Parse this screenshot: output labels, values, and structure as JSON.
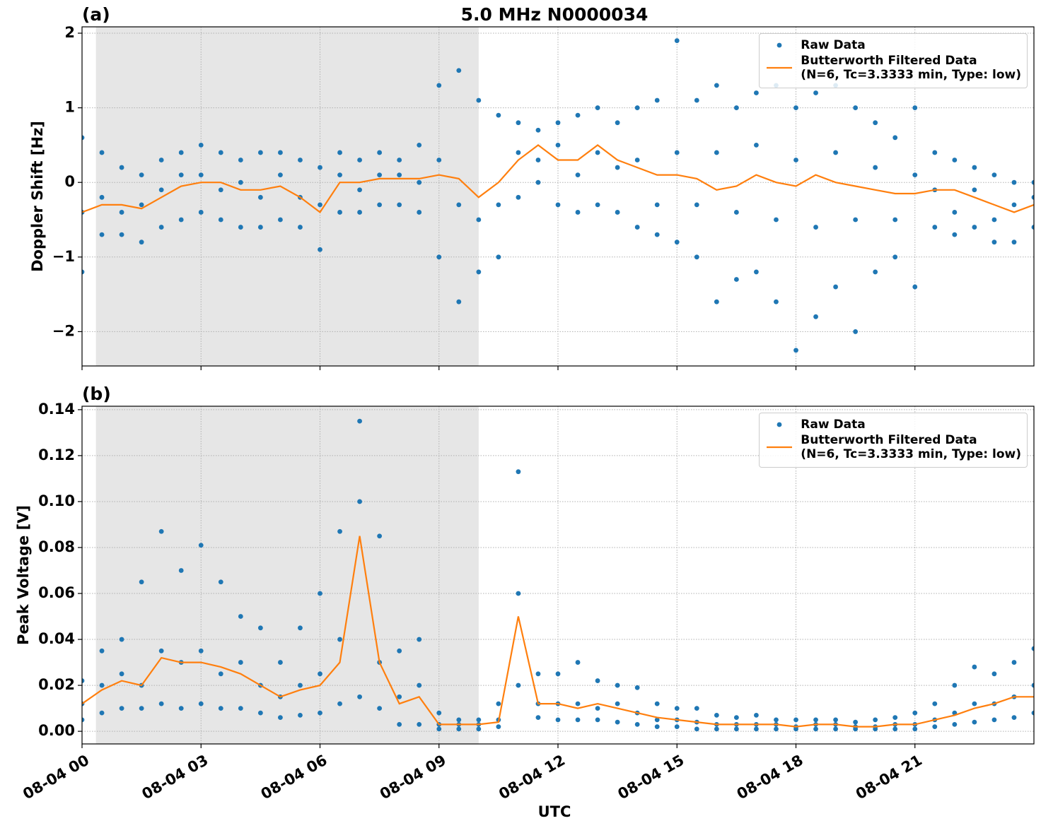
{
  "chart_data": [
    {
      "type": "scatter-line",
      "panel_label": "(a)",
      "title": "5.0 MHz N0000034",
      "ylabel": "Doppler Shift [Hz]",
      "xlim": [
        0,
        24
      ],
      "xticks": [
        0,
        3,
        6,
        9,
        12,
        15,
        18,
        21
      ],
      "ylim": [
        -2.46,
        2.085
      ],
      "yticks": [
        {
          "value": -2,
          "label": "−2"
        },
        {
          "value": -1,
          "label": "−1"
        },
        0,
        1,
        2
      ],
      "grid": true,
      "legend": "upper right",
      "shade": [
        0.35,
        10.0
      ],
      "x": [
        0,
        0.5,
        1,
        1.5,
        2,
        2.5,
        3,
        3.5,
        4,
        4.5,
        5,
        5.5,
        6,
        6.5,
        7,
        7.5,
        8,
        8.5,
        9,
        9.5,
        10,
        10.5,
        11,
        11.5,
        12,
        12.5,
        13,
        13.5,
        14,
        14.5,
        15,
        15.5,
        16,
        16.5,
        17,
        17.5,
        18,
        18.5,
        19,
        19.5,
        20,
        20.5,
        21,
        21.5,
        22,
        22.5,
        23,
        23.5,
        24
      ],
      "series": [
        {
          "name": "Raw Data",
          "color": "#1f77b4",
          "values": [
            [
              0.6,
              -0.4,
              -1.2
            ],
            [
              0.4,
              -0.2,
              -0.7
            ],
            [
              0.2,
              -0.4,
              -0.7
            ],
            [
              0.1,
              -0.3,
              -0.8
            ],
            [
              0.3,
              -0.1,
              -0.6
            ],
            [
              0.4,
              0.1,
              -0.5
            ],
            [
              0.5,
              0.1,
              -0.4
            ],
            [
              0.4,
              -0.1,
              -0.5
            ],
            [
              0.3,
              0.0,
              -0.6
            ],
            [
              0.4,
              -0.2,
              -0.6
            ],
            [
              0.4,
              0.1,
              -0.5
            ],
            [
              0.3,
              -0.2,
              -0.6
            ],
            [
              0.2,
              -0.3,
              -0.9
            ],
            [
              0.4,
              0.1,
              -0.4
            ],
            [
              0.3,
              -0.1,
              -0.4
            ],
            [
              0.4,
              0.1,
              -0.3
            ],
            [
              0.3,
              0.1,
              -0.3
            ],
            [
              0.5,
              0.0,
              -0.4
            ],
            [
              1.3,
              0.3,
              -1.0
            ],
            [
              1.5,
              -0.3,
              -1.6
            ],
            [
              1.1,
              -0.5,
              -1.2
            ],
            [
              0.9,
              -0.3,
              -1.0
            ],
            [
              0.8,
              0.4,
              -0.2
            ],
            [
              0.7,
              0.3,
              0.0
            ],
            [
              0.8,
              0.5,
              -0.3
            ],
            [
              0.9,
              0.1,
              -0.4
            ],
            [
              1.0,
              0.4,
              -0.3
            ],
            [
              0.8,
              0.2,
              -0.4
            ],
            [
              1.0,
              0.3,
              -0.6
            ],
            [
              1.1,
              -0.3,
              -0.7
            ],
            [
              1.9,
              0.4,
              -0.8
            ],
            [
              1.1,
              -0.3,
              -1.0
            ],
            [
              1.3,
              0.4,
              -1.6
            ],
            [
              1.0,
              -0.4,
              -1.3
            ],
            [
              1.2,
              0.5,
              -1.2
            ],
            [
              1.3,
              -0.5,
              -1.6
            ],
            [
              1.0,
              0.3,
              -2.25
            ],
            [
              1.2,
              -0.6,
              -1.8
            ],
            [
              1.3,
              0.4,
              -1.4
            ],
            [
              1.0,
              -0.5,
              -2.0
            ],
            [
              0.8,
              0.2,
              -1.2
            ],
            [
              0.6,
              -0.5,
              -1.0
            ],
            [
              1.0,
              0.1,
              -1.4
            ],
            [
              0.4,
              -0.1,
              -0.6
            ],
            [
              0.3,
              -0.4,
              -0.7
            ],
            [
              0.2,
              -0.1,
              -0.6
            ],
            [
              0.1,
              -0.5,
              -0.8
            ],
            [
              0.0,
              -0.3,
              -0.8
            ],
            [
              0.0,
              -0.2,
              -0.6
            ]
          ]
        },
        {
          "name": "Butterworth Filtered Data\n(N=6, Tc=3.3333 min, Type: low)",
          "color": "#ff7f0e",
          "values": [
            -0.4,
            -0.3,
            -0.3,
            -0.35,
            -0.2,
            -0.05,
            0.0,
            0.0,
            -0.1,
            -0.1,
            -0.05,
            -0.2,
            -0.4,
            0.0,
            0.0,
            0.05,
            0.05,
            0.05,
            0.1,
            0.05,
            -0.2,
            0.0,
            0.3,
            0.5,
            0.3,
            0.3,
            0.5,
            0.3,
            0.2,
            0.1,
            0.1,
            0.05,
            -0.1,
            -0.05,
            0.1,
            0.0,
            -0.05,
            0.1,
            0.0,
            -0.05,
            -0.1,
            -0.15,
            -0.15,
            -0.1,
            -0.1,
            -0.2,
            -0.3,
            -0.4,
            -0.3
          ]
        }
      ]
    },
    {
      "type": "scatter-line",
      "panel_label": "(b)",
      "ylabel": "Peak Voltage [V]",
      "xlabel": "UTC",
      "xlim": [
        0,
        24
      ],
      "xticks": [
        {
          "value": 0,
          "label": "08-04 00"
        },
        {
          "value": 3,
          "label": "08-04 03"
        },
        {
          "value": 6,
          "label": "08-04 06"
        },
        {
          "value": 9,
          "label": "08-04 09"
        },
        {
          "value": 12,
          "label": "08-04 12"
        },
        {
          "value": 15,
          "label": "08-04 15"
        },
        {
          "value": 18,
          "label": "08-04 18"
        },
        {
          "value": 21,
          "label": "08-04 21"
        }
      ],
      "ylim": [
        -0.0055,
        0.1415
      ],
      "yticks": [
        {
          "value": 0,
          "label": "0.00"
        },
        0.02,
        0.04,
        0.06,
        0.08,
        {
          "value": 0.1,
          "label": "0.10"
        },
        0.12,
        0.14
      ],
      "grid": true,
      "legend": "upper right",
      "shade": [
        0.35,
        10.0
      ],
      "x": [
        0,
        0.5,
        1,
        1.5,
        2,
        2.5,
        3,
        3.5,
        4,
        4.5,
        5,
        5.5,
        6,
        6.5,
        7,
        7.5,
        8,
        8.5,
        9,
        9.5,
        10,
        10.5,
        11,
        11.5,
        12,
        12.5,
        13,
        13.5,
        14,
        14.5,
        15,
        15.5,
        16,
        16.5,
        17,
        17.5,
        18,
        18.5,
        19,
        19.5,
        20,
        20.5,
        21,
        21.5,
        22,
        22.5,
        23,
        23.5,
        24
      ],
      "series": [
        {
          "name": "Raw Data",
          "color": "#1f77b4",
          "values": [
            [
              0.022,
              0.012,
              0.005
            ],
            [
              0.035,
              0.02,
              0.008
            ],
            [
              0.04,
              0.025,
              0.01
            ],
            [
              0.065,
              0.02,
              0.01
            ],
            [
              0.087,
              0.035,
              0.012
            ],
            [
              0.07,
              0.03,
              0.01
            ],
            [
              0.081,
              0.035,
              0.012
            ],
            [
              0.065,
              0.025,
              0.01
            ],
            [
              0.05,
              0.03,
              0.01
            ],
            [
              0.045,
              0.02,
              0.008
            ],
            [
              0.03,
              0.015,
              0.006
            ],
            [
              0.045,
              0.02,
              0.007
            ],
            [
              0.06,
              0.025,
              0.008
            ],
            [
              0.087,
              0.04,
              0.012
            ],
            [
              0.135,
              0.1,
              0.015
            ],
            [
              0.085,
              0.03,
              0.01
            ],
            [
              0.035,
              0.015,
              0.003
            ],
            [
              0.04,
              0.02,
              0.003
            ],
            [
              0.008,
              0.003,
              0.001
            ],
            [
              0.005,
              0.003,
              0.001
            ],
            [
              0.005,
              0.003,
              0.001
            ],
            [
              0.012,
              0.005,
              0.002
            ],
            [
              0.113,
              0.06,
              0.02
            ],
            [
              0.025,
              0.012,
              0.006
            ],
            [
              0.025,
              0.012,
              0.005
            ],
            [
              0.03,
              0.012,
              0.005
            ],
            [
              0.022,
              0.01,
              0.005
            ],
            [
              0.02,
              0.012,
              0.004
            ],
            [
              0.019,
              0.008,
              0.003
            ],
            [
              0.012,
              0.005,
              0.002
            ],
            [
              0.01,
              0.005,
              0.002
            ],
            [
              0.01,
              0.004,
              0.001
            ],
            [
              0.007,
              0.003,
              0.001
            ],
            [
              0.006,
              0.003,
              0.001
            ],
            [
              0.007,
              0.003,
              0.001
            ],
            [
              0.005,
              0.003,
              0.001
            ],
            [
              0.005,
              0.002,
              0.001
            ],
            [
              0.005,
              0.003,
              0.001
            ],
            [
              0.005,
              0.003,
              0.001
            ],
            [
              0.004,
              0.002,
              0.001
            ],
            [
              0.005,
              0.002,
              0.001
            ],
            [
              0.006,
              0.003,
              0.001
            ],
            [
              0.008,
              0.003,
              0.001
            ],
            [
              0.012,
              0.005,
              0.002
            ],
            [
              0.02,
              0.008,
              0.003
            ],
            [
              0.028,
              0.012,
              0.004
            ],
            [
              0.025,
              0.012,
              0.005
            ],
            [
              0.03,
              0.015,
              0.006
            ],
            [
              0.036,
              0.02,
              0.008
            ]
          ]
        },
        {
          "name": "Butterworth Filtered Data\n(N=6, Tc=3.3333 min, Type: low)",
          "color": "#ff7f0e",
          "values": [
            0.012,
            0.018,
            0.022,
            0.02,
            0.032,
            0.03,
            0.03,
            0.028,
            0.025,
            0.02,
            0.015,
            0.018,
            0.02,
            0.03,
            0.085,
            0.03,
            0.012,
            0.015,
            0.003,
            0.003,
            0.003,
            0.004,
            0.05,
            0.012,
            0.012,
            0.01,
            0.012,
            0.01,
            0.008,
            0.006,
            0.005,
            0.004,
            0.003,
            0.003,
            0.003,
            0.003,
            0.002,
            0.003,
            0.003,
            0.002,
            0.002,
            0.003,
            0.003,
            0.005,
            0.007,
            0.01,
            0.012,
            0.015,
            0.015
          ]
        }
      ]
    }
  ]
}
